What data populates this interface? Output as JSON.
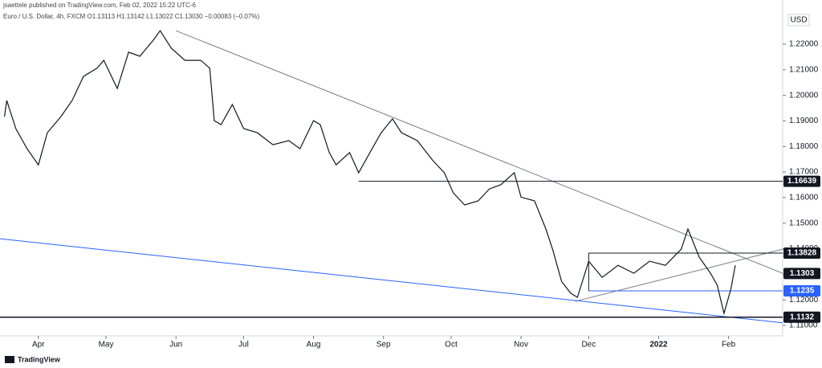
{
  "header": {
    "publisher": "jsaettele published on TradingView.com, Feb 02, 2022 15:22 UTC-6",
    "symbol_info": "Euro / U.S. Dollar, 4h, FXCM O1.13113 H1.13142 L1.13022 C1.13030 −0.00083 (−0.07%)"
  },
  "footer": {
    "brand": "TradingView"
  },
  "chart_data": {
    "type": "line",
    "currency": "USD",
    "x": [
      -15,
      -14,
      -10,
      -5,
      0,
      4,
      10,
      15,
      20,
      26,
      29,
      35,
      40,
      45,
      51,
      54,
      59,
      65,
      72,
      76,
      78,
      81,
      86,
      91,
      97,
      104,
      111,
      116,
      122,
      125,
      129,
      132,
      138,
      142,
      147,
      152,
      157,
      161,
      168,
      175,
      180,
      184,
      189,
      195,
      200,
      205,
      211,
      214,
      220,
      225,
      228,
      232,
      236,
      239,
      244,
      250,
      257,
      264,
      271,
      278,
      285,
      288,
      293,
      298,
      301,
      304,
      307,
      309
    ],
    "series": [
      {
        "name": "EURUSD",
        "color": "#131722",
        "values": [
          1.1917,
          1.198,
          1.187,
          1.1791,
          1.1728,
          1.1854,
          1.1917,
          1.198,
          1.2074,
          1.2106,
          1.2137,
          1.2027,
          1.2169,
          1.2153,
          1.2216,
          1.2253,
          1.2184,
          1.2137,
          1.2137,
          1.2106,
          1.1901,
          1.1885,
          1.1964,
          1.187,
          1.1854,
          1.1807,
          1.1823,
          1.1791,
          1.1901,
          1.1885,
          1.1776,
          1.1728,
          1.1776,
          1.1697,
          1.1776,
          1.1854,
          1.1908,
          1.1854,
          1.1823,
          1.1744,
          1.1697,
          1.1618,
          1.1571,
          1.1587,
          1.1634,
          1.165,
          1.1697,
          1.1602,
          1.1587,
          1.1477,
          1.1398,
          1.1272,
          1.1226,
          1.121,
          1.1351,
          1.1288,
          1.1335,
          1.1304,
          1.1351,
          1.1335,
          1.1398,
          1.1477,
          1.1367,
          1.1304,
          1.1257,
          1.1147,
          1.1241,
          1.1335
        ]
      }
    ],
    "xlim": [
      -17,
      330
    ],
    "xticks": [
      {
        "value": 0,
        "label": "Apr"
      },
      {
        "value": 30,
        "label": "May"
      },
      {
        "value": 61,
        "label": "Jun"
      },
      {
        "value": 91,
        "label": "Jul"
      },
      {
        "value": 122,
        "label": "Aug"
      },
      {
        "value": 153,
        "label": "Sep"
      },
      {
        "value": 183,
        "label": "Oct"
      },
      {
        "value": 214,
        "label": "Nov"
      },
      {
        "value": 244,
        "label": "Dec"
      },
      {
        "value": 275,
        "label": "2022"
      },
      {
        "value": 306,
        "label": "Feb"
      }
    ],
    "ylim": [
      1.1059,
      1.2373
    ],
    "yticks": [
      {
        "value": 1.11,
        "label": "1.11000"
      },
      {
        "value": 1.12,
        "label": "1.12000"
      },
      {
        "value": 1.13,
        "label": "1.13000"
      },
      {
        "value": 1.14,
        "label": "1.14000"
      },
      {
        "value": 1.15,
        "label": "1.15000"
      },
      {
        "value": 1.16,
        "label": "1.16000"
      },
      {
        "value": 1.17,
        "label": "1.17000"
      },
      {
        "value": 1.18,
        "label": "1.18000"
      },
      {
        "value": 1.19,
        "label": "1.19000"
      },
      {
        "value": 1.2,
        "label": "1.20000"
      },
      {
        "value": 1.21,
        "label": "1.21000"
      },
      {
        "value": 1.22,
        "label": "1.22000"
      }
    ],
    "levels": [
      {
        "value": 1.16639,
        "start": 142,
        "color": "#131722"
      },
      {
        "value": 1.13828,
        "start": 244,
        "color": "#131722"
      },
      {
        "value": 1.1303,
        "start": 330,
        "color": "#131722"
      },
      {
        "value": 1.1235,
        "start": 244,
        "color": "#2962ff"
      },
      {
        "value": 1.1132,
        "start": -17,
        "color": "#131722"
      }
    ],
    "trendlines": [
      {
        "x": [
          61,
          330
        ],
        "y": [
          1.2253,
          1.1304
        ],
        "color": "#787b86"
      },
      {
        "x": [
          238,
          330
        ],
        "y": [
          1.1194,
          1.1398
        ],
        "color": "#787b86"
      },
      {
        "x": [
          -17,
          330
        ],
        "y": [
          1.1439,
          1.111
        ],
        "color": "#2962ff"
      },
      {
        "x": [
          244,
          244
        ],
        "y": [
          1.13828,
          1.1235
        ],
        "color": "#131722"
      }
    ]
  }
}
